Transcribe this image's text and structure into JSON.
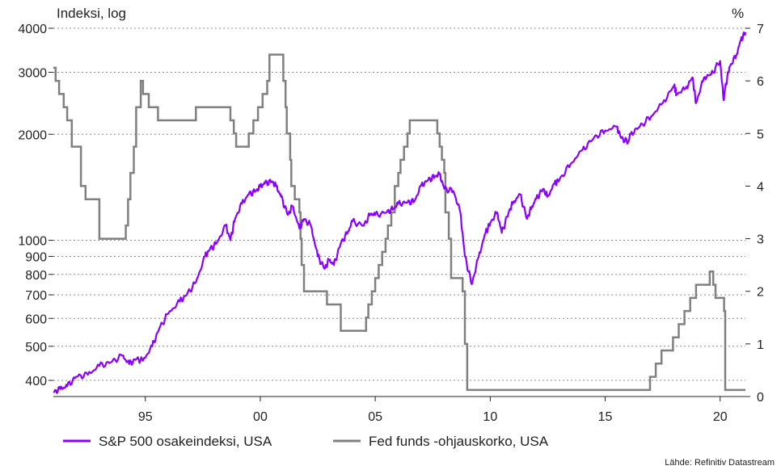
{
  "chart_data": {
    "type": "line",
    "title": "",
    "ylabel_left": "Indeksi, log",
    "ylabel_right": "%",
    "source": "Lähde: Refinitiv Datastream",
    "xlim": [
      1991.0,
      2021.1
    ],
    "x_ticks": [
      {
        "value": 1995,
        "label": "95"
      },
      {
        "value": 2000,
        "label": "00"
      },
      {
        "value": 2005,
        "label": "05"
      },
      {
        "value": 2010,
        "label": "10"
      },
      {
        "value": 2015,
        "label": "15"
      },
      {
        "value": 2020,
        "label": "20"
      }
    ],
    "y_left": {
      "scale": "log",
      "range": [
        360,
        4000
      ],
      "ticks": [
        {
          "value": 400,
          "label": "400"
        },
        {
          "value": 500,
          "label": "500"
        },
        {
          "value": 600,
          "label": "600"
        },
        {
          "value": 700,
          "label": "700"
        },
        {
          "value": 800,
          "label": "800"
        },
        {
          "value": 900,
          "label": "900"
        },
        {
          "value": 1000,
          "label": "1000"
        },
        {
          "value": 2000,
          "label": "2000"
        },
        {
          "value": 3000,
          "label": "3000"
        },
        {
          "value": 4000,
          "label": "4000"
        }
      ]
    },
    "y_right": {
      "scale": "linear",
      "range": [
        0,
        7
      ],
      "ticks": [
        {
          "value": 0,
          "label": "0"
        },
        {
          "value": 1,
          "label": "1"
        },
        {
          "value": 2,
          "label": "2"
        },
        {
          "value": 3,
          "label": "3"
        },
        {
          "value": 4,
          "label": "4"
        },
        {
          "value": 5,
          "label": "5"
        },
        {
          "value": 6,
          "label": "6"
        },
        {
          "value": 7,
          "label": "7"
        }
      ]
    },
    "series": [
      {
        "name": "S&P 500 osakeindeksi, USA",
        "axis": "left",
        "color": "#8B00FF",
        "x": [
          1991.0,
          1991.3,
          1991.6,
          1992.0,
          1992.5,
          1993.0,
          1993.5,
          1994.0,
          1994.3,
          1994.6,
          1994.9,
          1995.3,
          1995.6,
          1996.0,
          1996.5,
          1996.8,
          1997.2,
          1997.6,
          1997.8,
          1998.1,
          1998.5,
          1998.7,
          1998.9,
          1999.2,
          1999.5,
          1999.8,
          2000.0,
          2000.2,
          2000.5,
          2000.7,
          2000.9,
          2001.2,
          2001.4,
          2001.7,
          2001.9,
          2002.2,
          2002.5,
          2002.8,
          2003.0,
          2003.2,
          2003.5,
          2003.8,
          2004.0,
          2004.5,
          2004.8,
          2005.0,
          2005.5,
          2005.8,
          2006.0,
          2006.4,
          2006.7,
          2007.0,
          2007.3,
          2007.6,
          2007.8,
          2008.0,
          2008.4,
          2008.7,
          2008.9,
          2009.2,
          2009.5,
          2009.8,
          2010.0,
          2010.3,
          2010.5,
          2010.8,
          2011.0,
          2011.3,
          2011.6,
          2011.8,
          2012.0,
          2012.3,
          2012.5,
          2012.8,
          2013.0,
          2013.5,
          2014.0,
          2014.5,
          2015.0,
          2015.5,
          2015.7,
          2016.0,
          2016.1,
          2016.5,
          2017.0,
          2017.5,
          2018.0,
          2018.1,
          2018.5,
          2018.8,
          2018.95,
          2019.3,
          2019.6,
          2020.0,
          2020.15,
          2020.22,
          2020.4,
          2020.7,
          2020.9,
          2021.1
        ],
        "values": [
          370,
          378,
          385,
          410,
          415,
          440,
          450,
          470,
          445,
          460,
          455,
          500,
          560,
          620,
          670,
          700,
          760,
          900,
          940,
          980,
          1100,
          1000,
          1150,
          1270,
          1350,
          1380,
          1420,
          1450,
          1470,
          1420,
          1330,
          1180,
          1250,
          1080,
          1150,
          1100,
          900,
          830,
          880,
          850,
          980,
          1050,
          1130,
          1100,
          1190,
          1180,
          1200,
          1230,
          1270,
          1280,
          1290,
          1430,
          1480,
          1520,
          1540,
          1400,
          1380,
          1200,
          900,
          750,
          900,
          1050,
          1120,
          1200,
          1050,
          1200,
          1280,
          1350,
          1150,
          1240,
          1310,
          1400,
          1330,
          1450,
          1480,
          1650,
          1800,
          1950,
          2050,
          2100,
          1950,
          1900,
          2000,
          2100,
          2250,
          2450,
          2750,
          2600,
          2700,
          2900,
          2450,
          2900,
          2950,
          3230,
          2500,
          2700,
          3100,
          3350,
          3700,
          3900
        ]
      },
      {
        "name": "Fed funds -ohjauskorko, USA",
        "axis": "right",
        "color": "#808080",
        "x": [
          1991.0,
          1991.1,
          1991.25,
          1991.45,
          1991.6,
          1991.8,
          1992.2,
          1992.4,
          1993.0,
          1994.0,
          1994.15,
          1994.25,
          1994.35,
          1994.5,
          1994.6,
          1994.8,
          1994.9,
          1995.15,
          1995.55,
          1995.9,
          1996.1,
          1997.2,
          1998.7,
          1998.85,
          1998.95,
          1999.5,
          1999.7,
          1999.9,
          2000.1,
          2000.3,
          2000.4,
          2001.0,
          2001.1,
          2001.15,
          2001.3,
          2001.35,
          2001.5,
          2001.7,
          2001.75,
          2001.8,
          2001.9,
          2002.9,
          2003.5,
          2004.5,
          2004.6,
          2004.7,
          2004.85,
          2005.0,
          2005.15,
          2005.3,
          2005.45,
          2005.55,
          2005.7,
          2005.85,
          2006.0,
          2006.1,
          2006.25,
          2006.4,
          2006.5,
          2007.7,
          2007.8,
          2007.9,
          2008.0,
          2008.05,
          2008.2,
          2008.3,
          2008.8,
          2008.9,
          2009.0,
          2015.95,
          2016.95,
          2017.2,
          2017.45,
          2017.95,
          2018.2,
          2018.45,
          2018.7,
          2018.95,
          2019.55,
          2019.7,
          2019.8,
          2020.17,
          2020.22,
          2021.1
        ],
        "values": [
          6.25,
          6.0,
          5.75,
          5.5,
          5.25,
          4.75,
          4.0,
          3.75,
          3.0,
          3.0,
          3.25,
          3.75,
          4.25,
          4.75,
          5.5,
          6.0,
          5.75,
          5.5,
          5.25,
          5.25,
          5.25,
          5.5,
          5.25,
          5.0,
          4.75,
          5.0,
          5.25,
          5.5,
          5.75,
          6.0,
          6.5,
          6.0,
          5.5,
          5.0,
          4.5,
          4.0,
          3.75,
          3.5,
          3.0,
          2.5,
          2.0,
          1.75,
          1.25,
          1.25,
          1.5,
          1.75,
          2.0,
          2.25,
          2.5,
          2.75,
          3.0,
          3.25,
          3.5,
          4.0,
          4.25,
          4.5,
          4.75,
          5.0,
          5.25,
          5.0,
          4.75,
          4.5,
          4.25,
          3.5,
          3.0,
          2.25,
          2.0,
          1.0,
          0.125,
          0.125,
          0.375,
          0.625,
          0.875,
          1.125,
          1.375,
          1.625,
          1.875,
          2.125,
          2.375,
          2.125,
          1.875,
          1.625,
          0.125,
          0.125
        ]
      }
    ],
    "legend": {
      "position": "bottom-left",
      "entries": [
        {
          "label": "S&P 500 osakeindeksi, USA",
          "color": "#8B00FF"
        },
        {
          "label": "Fed funds -ohjauskorko, USA",
          "color": "#808080"
        }
      ]
    }
  }
}
